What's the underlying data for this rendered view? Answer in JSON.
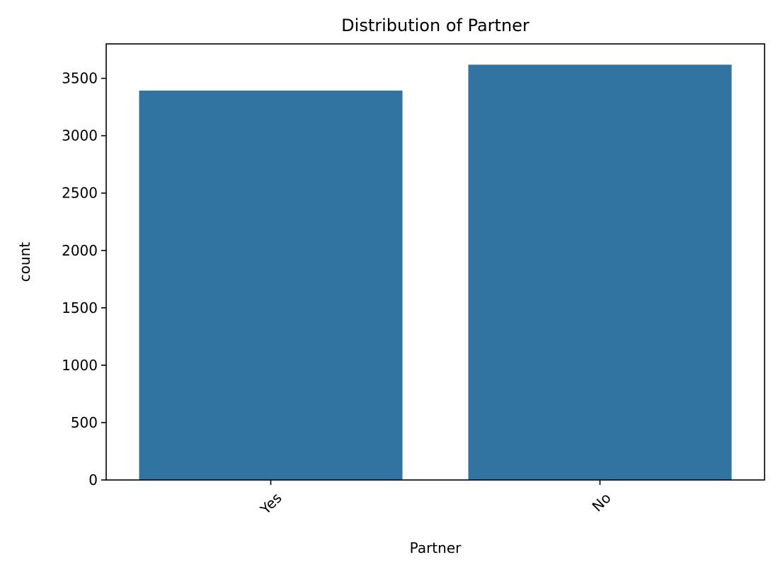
{
  "chart_data": {
    "type": "bar",
    "title": "Distribution of Partner",
    "xlabel": "Partner",
    "ylabel": "count",
    "categories": [
      "Yes",
      "No"
    ],
    "values": [
      3393,
      3619
    ],
    "ylim": [
      0,
      3800
    ],
    "yticks": [
      0,
      500,
      1000,
      1500,
      2000,
      2500,
      3000,
      3500
    ],
    "xtick_rotation_deg": 45,
    "grid": false,
    "legend": "none",
    "bar_color": "#3274a1"
  }
}
